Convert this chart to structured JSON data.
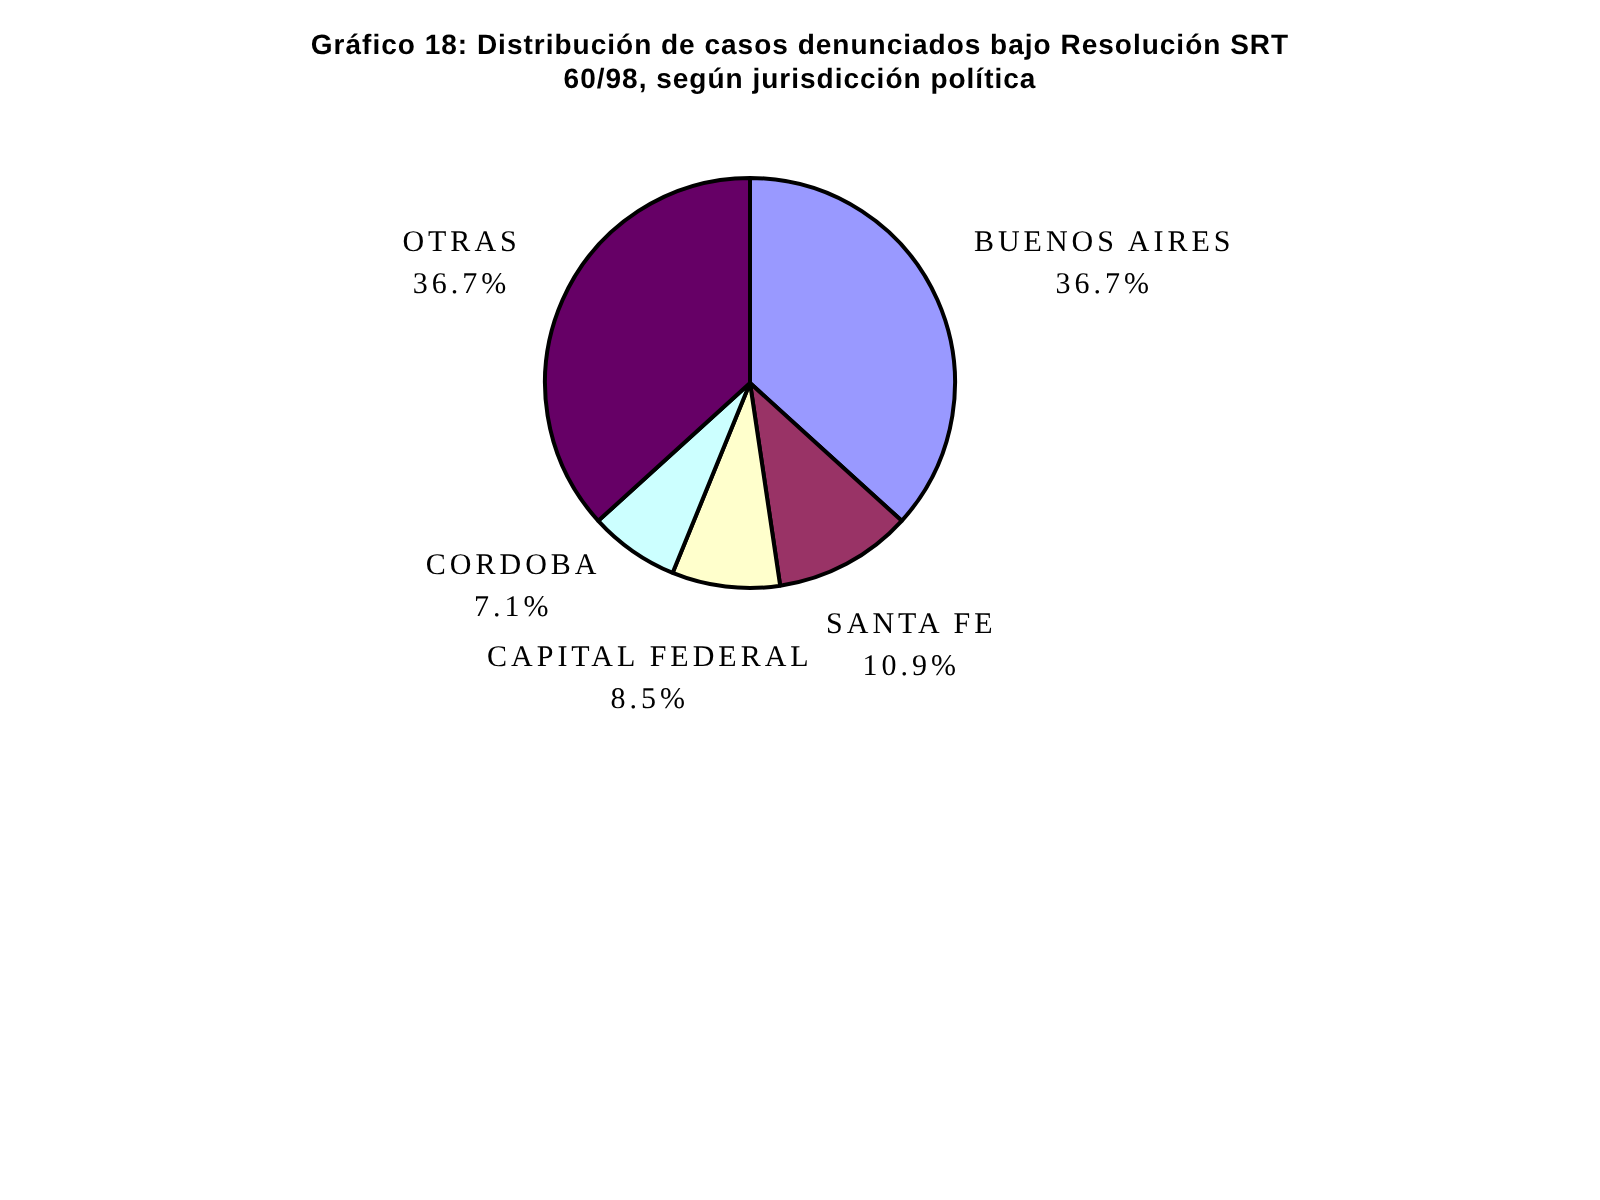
{
  "chart_data": {
    "type": "pie",
    "title": "Gráfico 18: Distribución de casos denunciados bajo Resolución SRT 60/98, según jurisdicción política",
    "categories": [
      "BUENOS AIRES",
      "SANTA FE",
      "CAPITAL FEDERAL",
      "CORDOBA",
      "OTRAS"
    ],
    "values": [
      36.7,
      10.9,
      8.5,
      7.1,
      36.7
    ],
    "value_labels": [
      "36.7%",
      "10.9%",
      "8.5%",
      "7.1%",
      "36.7%"
    ],
    "colors": [
      "#9999ff",
      "#993366",
      "#ffffcc",
      "#ccffff",
      "#660066"
    ]
  }
}
